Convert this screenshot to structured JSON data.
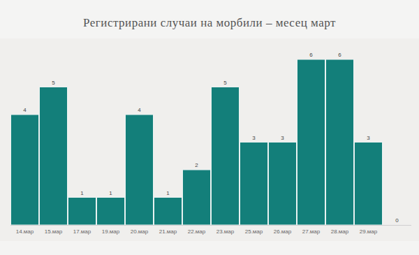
{
  "chart_data": {
    "type": "bar",
    "title": "Регистрирани случаи на морбили – месец март",
    "categories": [
      "14.мар",
      "15.мар",
      "17.мар",
      "19.мар",
      "20.мар",
      "21.мар",
      "22.мар",
      "23.мар",
      "25.мар",
      "26.мар",
      "27.мар",
      "28.мар",
      "29.мар",
      null
    ],
    "values": [
      4,
      5,
      1,
      1,
      4,
      1,
      2,
      5,
      3,
      3,
      6,
      6,
      3,
      0
    ],
    "color": "#137f7a",
    "ylim": [
      0,
      6
    ],
    "data_labels": true,
    "tick_labels": "x",
    "grid": false
  }
}
